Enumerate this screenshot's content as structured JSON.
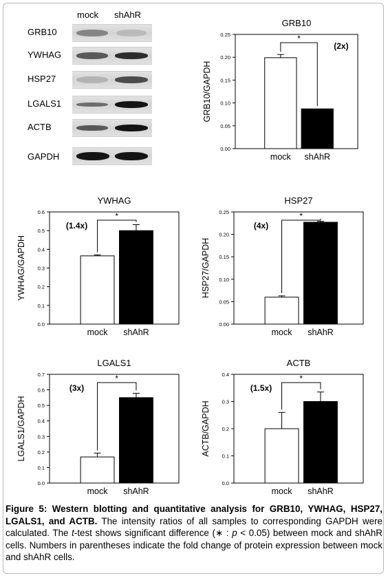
{
  "blot": {
    "col_mock": "mock",
    "col_shahr": "shAhR",
    "rows": [
      {
        "label": "GRB10"
      },
      {
        "label": "YWHAG"
      },
      {
        "label": "HSP27"
      },
      {
        "label": "LGALS1"
      },
      {
        "label": "ACTB"
      },
      {
        "label": "GAPDH"
      }
    ]
  },
  "chart_data": [
    {
      "type": "bar",
      "title": "GRB10",
      "ylabel": "GRB10/GAPDH",
      "categories": [
        "mock",
        "shAhR"
      ],
      "values": [
        0.199,
        0.087
      ],
      "errors": [
        0.007,
        0.0
      ],
      "bar_colors": [
        "#ffffff",
        "#000000"
      ],
      "ylim": [
        0,
        0.25
      ],
      "yticks": [
        "0.00",
        "0.05",
        "0.10",
        "0.15",
        "0.20",
        "0.25"
      ],
      "fold_label": "(2x)",
      "fold_position": "right",
      "significance": "*"
    },
    {
      "type": "bar",
      "title": "YWHAG",
      "ylabel": "YWHAG/GAPDH",
      "categories": [
        "mock",
        "shAhR"
      ],
      "values": [
        0.365,
        0.5
      ],
      "errors": [
        0.005,
        0.032
      ],
      "bar_colors": [
        "#ffffff",
        "#000000"
      ],
      "ylim": [
        0,
        0.6
      ],
      "yticks": [
        "0.0",
        "0.1",
        "0.2",
        "0.3",
        "0.4",
        "0.5",
        "0.6"
      ],
      "fold_label": "(1.4x)",
      "fold_position": "left",
      "significance": "*"
    },
    {
      "type": "bar",
      "title": "HSP27",
      "ylabel": "HSP27/GAPDH",
      "categories": [
        "mock",
        "shAhR"
      ],
      "values": [
        0.06,
        0.227
      ],
      "errors": [
        0.003,
        0.002
      ],
      "bar_colors": [
        "#ffffff",
        "#000000"
      ],
      "ylim": [
        0,
        0.25
      ],
      "yticks": [
        "0.00",
        "0.05",
        "0.10",
        "0.15",
        "0.20",
        "0.25"
      ],
      "fold_label": "(4x)",
      "fold_position": "left",
      "significance": "*"
    },
    {
      "type": "bar",
      "title": "LGALS1",
      "ylabel": "LGALS1/GAPDH",
      "categories": [
        "mock",
        "shAhR"
      ],
      "values": [
        0.168,
        0.55
      ],
      "errors": [
        0.025,
        0.028
      ],
      "bar_colors": [
        "#ffffff",
        "#000000"
      ],
      "ylim": [
        0,
        0.7
      ],
      "yticks": [
        "0.0",
        "0.1",
        "0.2",
        "0.3",
        "0.4",
        "0.5",
        "0.6",
        "0.7"
      ],
      "fold_label": "(3x)",
      "fold_position": "left",
      "significance": "*"
    },
    {
      "type": "bar",
      "title": "ACTB",
      "ylabel": "ACTB/GAPDH",
      "categories": [
        "mock",
        "shAhR"
      ],
      "values": [
        0.2,
        0.3
      ],
      "errors": [
        0.06,
        0.035
      ],
      "bar_colors": [
        "#ffffff",
        "#000000"
      ],
      "ylim": [
        0,
        0.4
      ],
      "yticks": [
        "0.0",
        "0.1",
        "0.2",
        "0.3",
        "0.4"
      ],
      "fold_label": "(1.5x)",
      "fold_position": "left",
      "significance": "*"
    }
  ],
  "caption": {
    "bold_part": "Figure 5: Western blotting and quantitative analysis for GRB10, YWHAG, HSP27, LGALS1, and ACTB.",
    "text_1": " The intensity ratios of all samples to corresponding GAPDH were calculated. The ",
    "t_italic": "t",
    "text_2": "-test shows significant difference (∗ : ",
    "p_italic": "p",
    "text_3": " < 0.05) between mock and shAhR cells. Numbers in parentheses indicate the fold change of protein expression between mock and shAhR cells."
  }
}
